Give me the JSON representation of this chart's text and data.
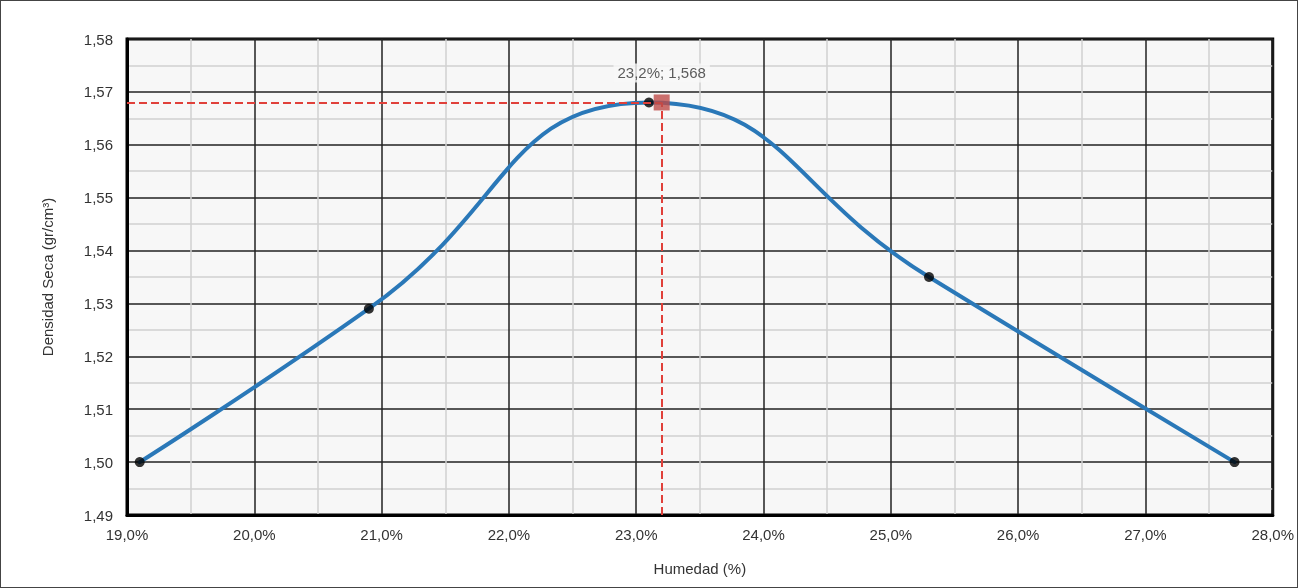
{
  "chart_data": {
    "type": "line",
    "xlabel": "Humedad (%)",
    "ylabel": "Densidad Seca (gr/cm³)",
    "series": [
      {
        "color": "#2a78b8",
        "x": [
          19.1,
          20.9,
          23.1,
          25.3,
          27.7
        ],
        "values": [
          1.5,
          1.529,
          1.568,
          1.535,
          1.5
        ],
        "marker": "none"
      },
      {
        "type": "scatter",
        "color": "#000000",
        "x": [
          19.1,
          20.9,
          23.1,
          25.3,
          27.7
        ],
        "values": [
          1.5,
          1.529,
          1.568,
          1.535,
          1.5
        ],
        "marker": "circle"
      },
      {
        "type": "scatter",
        "color": "#be4b48",
        "x": [
          23.2
        ],
        "values": [
          1.568
        ],
        "marker": "square",
        "value_labels": [
          "23,2%; 1,568"
        ]
      }
    ],
    "xlim": [
      19,
      28
    ],
    "xticks": [
      {
        "value": 19,
        "label": "19,0%"
      },
      {
        "value": 20,
        "label": "20,0%"
      },
      {
        "value": 21,
        "label": "21,0%"
      },
      {
        "value": 22,
        "label": "22,0%"
      },
      {
        "value": 23,
        "label": "23,0%"
      },
      {
        "value": 24,
        "label": "24,0%"
      },
      {
        "value": 25,
        "label": "25,0%"
      },
      {
        "value": 26,
        "label": "26,0%"
      },
      {
        "value": 27,
        "label": "27,0%"
      },
      {
        "value": 28,
        "label": "28,0%"
      }
    ],
    "ylim": [
      1.49,
      1.58
    ],
    "yticks": [
      {
        "value": 1.49,
        "label": "1,49"
      },
      {
        "value": 1.5,
        "label": "1,50"
      },
      {
        "value": 1.51,
        "label": "1,51"
      },
      {
        "value": 1.52,
        "label": "1,52"
      },
      {
        "value": 1.53,
        "label": "1,53"
      },
      {
        "value": 1.54,
        "label": "1,54"
      },
      {
        "value": 1.55,
        "label": "1,55"
      },
      {
        "value": 1.56,
        "label": "1,56"
      },
      {
        "value": 1.57,
        "label": "1,57"
      },
      {
        "value": 1.58,
        "label": "1,58"
      }
    ],
    "ref_lines": [
      {
        "axis": "x",
        "value": 23.2,
        "color": "#e0403a",
        "line_style": "dashed"
      },
      {
        "axis": "y",
        "value": 1.568,
        "color": "#e0403a",
        "line_style": "dashed"
      }
    ],
    "grid": true
  }
}
